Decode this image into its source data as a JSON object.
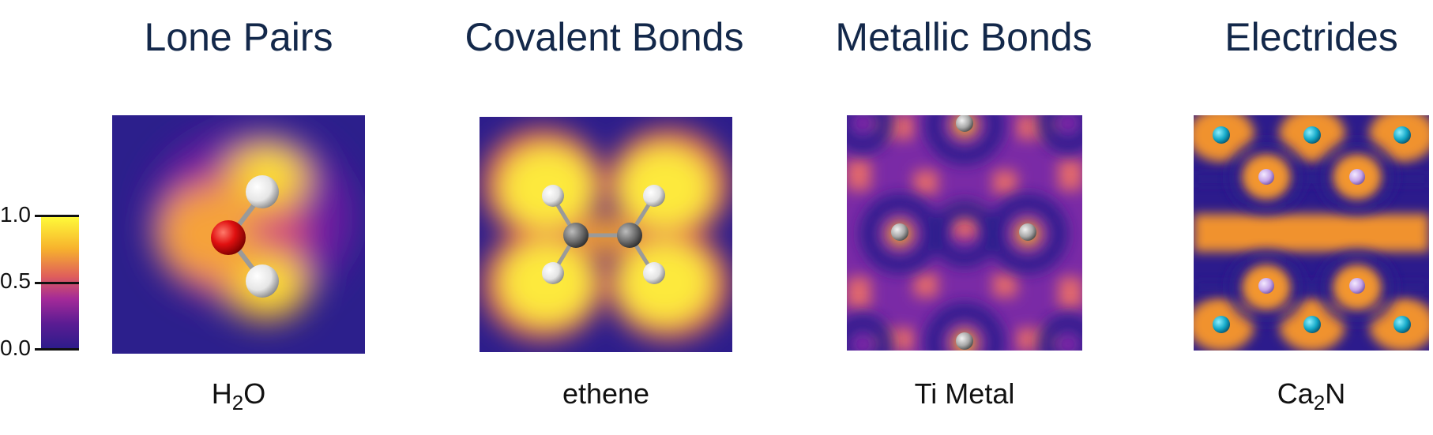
{
  "colorbar": {
    "ticks": [
      "1.0",
      "0.5",
      "0.0"
    ],
    "colors": [
      "#ffff3a",
      "#f5a52a",
      "#d8486a",
      "#a02a9a",
      "#5a1a90",
      "#2c1b8c"
    ]
  },
  "panels": [
    {
      "title": "Lone Pairs",
      "label_main": "H",
      "label_sub": "2",
      "label_tail": "O",
      "icon": "water-molecule"
    },
    {
      "title": "Covalent Bonds",
      "label_main": "ethene",
      "label_sub": "",
      "label_tail": "",
      "icon": "ethene-molecule"
    },
    {
      "title": "Metallic Bonds",
      "label_main": "Ti Metal",
      "label_sub": "",
      "label_tail": "",
      "icon": "titanium-lattice"
    },
    {
      "title": "Electrides",
      "label_main": "Ca",
      "label_sub": "2",
      "label_tail": "N",
      "icon": "ca2n-lattice"
    }
  ]
}
